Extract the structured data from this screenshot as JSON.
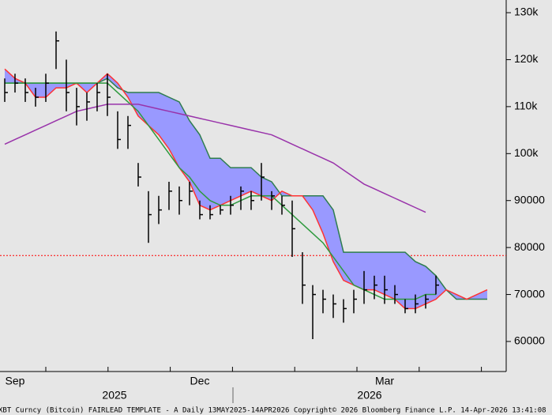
{
  "chart_data": {
    "type": "ohlc",
    "categories": [
      null,
      "Sep",
      null,
      null,
      null,
      null,
      null,
      null,
      null,
      null,
      null,
      null,
      null,
      null,
      null,
      null,
      null,
      null,
      null,
      "Dec",
      null,
      null,
      null,
      null,
      null,
      null,
      null,
      null,
      null,
      null,
      null,
      null,
      null,
      null,
      null,
      null,
      null,
      "Mar",
      null,
      null,
      null,
      null,
      null,
      null,
      null,
      null,
      null,
      null
    ],
    "x_year_labels": [
      "2025",
      "2026"
    ],
    "price": {
      "color": "#000000",
      "high": [
        116000,
        117000,
        116000,
        114000,
        117000,
        126000,
        120000,
        114000,
        113000,
        115000,
        117000,
        109000,
        108000,
        98000,
        92000,
        91000,
        94000,
        93000,
        94000,
        90000,
        89000,
        89000,
        91000,
        93000,
        92000,
        98000,
        92000,
        91000,
        90000,
        79000,
        72000,
        71000,
        70000,
        69000,
        71000,
        75000,
        74000,
        74000,
        72000,
        69000,
        70000,
        70000,
        74000,
        null,
        null,
        null,
        null,
        null
      ],
      "low": [
        111000,
        113000,
        111000,
        110000,
        111000,
        118000,
        109000,
        106000,
        107000,
        109000,
        108000,
        101000,
        101000,
        93000,
        81000,
        85000,
        88000,
        87000,
        89000,
        86000,
        86000,
        87000,
        87000,
        88000,
        88000,
        90000,
        88000,
        87000,
        78000,
        68000,
        60500,
        66000,
        65000,
        64000,
        66000,
        68000,
        69000,
        68000,
        68000,
        66000,
        66000,
        67000,
        70000,
        null,
        null,
        null,
        null,
        null
      ],
      "close": [
        113000,
        115000,
        113000,
        112000,
        115000,
        124000,
        113000,
        110000,
        111000,
        113000,
        112000,
        103000,
        106000,
        95000,
        87000,
        88000,
        92000,
        90000,
        92000,
        87000,
        87000,
        88000,
        89000,
        92000,
        90000,
        95000,
        91000,
        89000,
        84000,
        72000,
        70000,
        69000,
        68000,
        67000,
        69000,
        71000,
        72000,
        71000,
        70000,
        67000,
        68000,
        69000,
        72000,
        null,
        null,
        null,
        null,
        null
      ]
    },
    "cloud": {
      "fill": "#9999ff",
      "span_a": {
        "color": "#ff3333",
        "values": [
          118000,
          116000,
          115000,
          112000,
          112000,
          114000,
          114000,
          115000,
          113000,
          115000,
          117000,
          115000,
          112000,
          108000,
          106000,
          104000,
          101000,
          97000,
          94000,
          89000,
          88000,
          89000,
          90000,
          91000,
          92000,
          91000,
          90000,
          92000,
          91000,
          91000,
          88000,
          83000,
          77000,
          73000,
          72000,
          71000,
          71000,
          70000,
          69000,
          67000,
          67000,
          68000,
          69000,
          71000,
          70000,
          69000,
          70000,
          71000
        ]
      },
      "span_b": {
        "color": "#2e7d4f",
        "values": [
          115000,
          115000,
          115000,
          115000,
          115000,
          115000,
          115000,
          115000,
          115000,
          115000,
          116000,
          114000,
          113000,
          113000,
          113000,
          113000,
          112000,
          111000,
          107000,
          104000,
          99000,
          99000,
          97000,
          97000,
          97000,
          95000,
          94000,
          91000,
          91000,
          91000,
          91000,
          91000,
          88000,
          79000,
          79000,
          79000,
          79000,
          79000,
          79000,
          79000,
          77000,
          76000,
          74000,
          71000,
          69000,
          69000,
          69000,
          69000
        ]
      }
    },
    "lines": [
      {
        "color": "#2e9a3e",
        "values": [
          115000,
          115000,
          115000,
          115000,
          115000,
          115000,
          115000,
          115000,
          115000,
          115000,
          115000,
          113000,
          111000,
          109000,
          106000,
          103000,
          100000,
          97000,
          95000,
          92000,
          90000,
          89000,
          89000,
          90000,
          91000,
          91000,
          91000,
          89000,
          87000,
          85000,
          83000,
          81000,
          78000,
          75000,
          72000,
          71000,
          70000,
          69000,
          69000,
          69000,
          69000,
          70000,
          70000,
          null,
          null,
          null,
          null,
          null
        ]
      },
      {
        "color": "#9933aa",
        "values": [
          102000,
          103000,
          104000,
          105000,
          106000,
          107000,
          108000,
          109000,
          109500,
          110000,
          110500,
          110500,
          110500,
          110500,
          110000,
          109500,
          109000,
          108500,
          108000,
          107500,
          107000,
          106500,
          106000,
          105500,
          105000,
          104500,
          104000,
          103000,
          102000,
          101000,
          100000,
          99000,
          98000,
          96500,
          95000,
          93500,
          92500,
          91500,
          90500,
          89500,
          88500,
          87500,
          null,
          null,
          null,
          null,
          null,
          null
        ]
      }
    ],
    "reference_line": {
      "value": 78300,
      "color": "#ff0000"
    },
    "ylim": [
      53600,
      132700
    ],
    "yticks": [
      60000,
      70000,
      80000,
      90000,
      {
        "value": 100000,
        "label": "100k"
      },
      {
        "value": 110000,
        "label": "110k"
      },
      {
        "value": 120000,
        "label": "120k"
      },
      {
        "value": 130000,
        "label": "130k"
      }
    ],
    "footer": "XBT Curncy (Bitcoin) FAIRLEAD TEMPLATE - A Daily 13MAY2025-14APR2026  Copyright© 2026 Bloomberg Finance L.P.     14-Apr-2026 13:41:08"
  }
}
